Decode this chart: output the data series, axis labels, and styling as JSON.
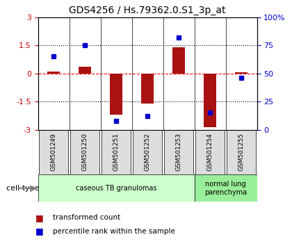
{
  "title": "GDS4256 / Hs.79362.0.S1_3p_at",
  "samples": [
    "GSM501249",
    "GSM501250",
    "GSM501251",
    "GSM501252",
    "GSM501253",
    "GSM501254",
    "GSM501255"
  ],
  "transformed_count": [
    0.1,
    0.35,
    -2.2,
    -1.6,
    1.4,
    -2.85,
    0.05
  ],
  "percentile_rank": [
    65,
    75,
    8,
    12,
    82,
    15,
    46
  ],
  "ylim_left": [
    -3,
    3
  ],
  "ylim_right": [
    0,
    100
  ],
  "yticks_left": [
    -3,
    -1.5,
    0,
    1.5,
    3
  ],
  "yticks_right": [
    0,
    25,
    50,
    75,
    100
  ],
  "ytick_labels_left": [
    "-3",
    "-1.5",
    "0",
    "1.5",
    "3"
  ],
  "ytick_labels_right": [
    "0",
    "25",
    "50",
    "75",
    "100%"
  ],
  "hlines": [
    1.5,
    0,
    -1.5
  ],
  "hline_styles": [
    "dotted",
    "dashed",
    "dotted"
  ],
  "hline_colors": [
    "black",
    "red",
    "black"
  ],
  "bar_color": "#AA1111",
  "dot_color": "#0000CC",
  "cell_type_groups": [
    {
      "label": "caseous TB granulomas",
      "start": 0,
      "end": 5,
      "color": "#ccffcc"
    },
    {
      "label": "normal lung\nparenchyma",
      "start": 5,
      "end": 7,
      "color": "#99ee99"
    }
  ],
  "legend_items": [
    {
      "color": "#AA1111",
      "label": "transformed count"
    },
    {
      "color": "#0000CC",
      "label": "percentile rank within the sample"
    }
  ],
  "cell_type_label": "cell type",
  "background_color": "#ffffff",
  "plot_bg_color": "#ffffff",
  "bar_width": 0.4
}
